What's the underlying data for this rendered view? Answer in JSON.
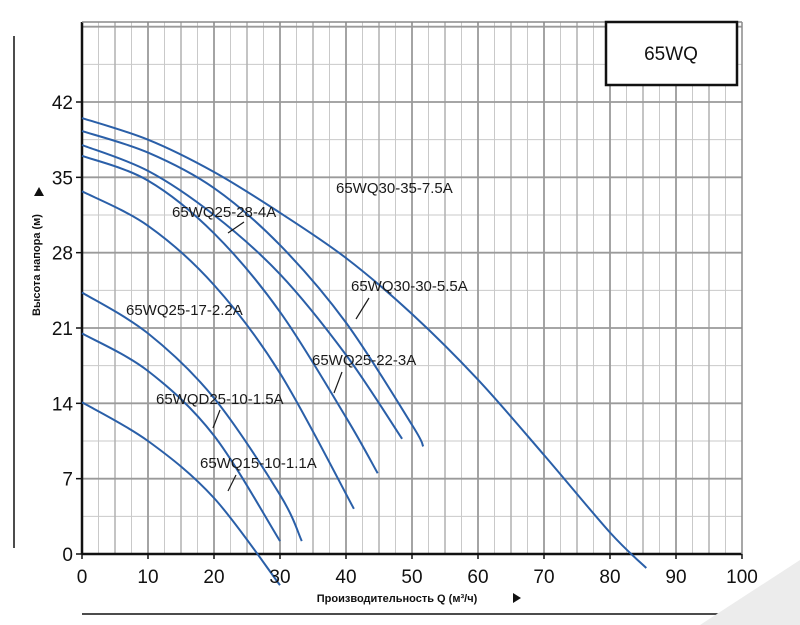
{
  "chart_data": {
    "type": "line",
    "title": "65WQ",
    "xlabel": "Производительность Q (м³/ч)",
    "ylabel": "Высота напора (м)",
    "xlim": [
      0,
      100
    ],
    "ylim": [
      0,
      49
    ],
    "x_ticks": [
      "0",
      "10",
      "20",
      "30",
      "40",
      "50",
      "60",
      "70",
      "80",
      "90",
      "100"
    ],
    "y_ticks": [
      "0",
      "7",
      "14",
      "21",
      "28",
      "35",
      "42"
    ],
    "grid": true,
    "line_color": "#2a5fa8",
    "series": [
      {
        "name": "65WQ30-35-7.5A",
        "x": [
          0,
          10,
          20,
          30,
          40,
          50,
          60,
          70,
          80,
          85.5
        ],
        "y": [
          40.5,
          38.5,
          35.5,
          31.7,
          27.5,
          22.3,
          16.2,
          9.2,
          2.0,
          -1.3
        ]
      },
      {
        "name": "65WQ25-28-4A",
        "x": [
          0,
          10,
          20,
          30,
          40,
          50,
          51.7
        ],
        "y": [
          39.3,
          37.3,
          34.0,
          28.7,
          21.5,
          12.0,
          10.0
        ]
      },
      {
        "name": "65WQ30-30-5.5A",
        "x": [
          0,
          10,
          20,
          30,
          40,
          48.5
        ],
        "y": [
          38.0,
          35.6,
          31.5,
          26.0,
          18.5,
          10.7
        ]
      },
      {
        "name": "65WQ25-22-3A",
        "x": [
          0,
          10,
          20,
          30,
          40,
          44.8
        ],
        "y": [
          37.0,
          34.7,
          29.8,
          22.5,
          12.7,
          7.5
        ]
      },
      {
        "name": "65WQ25-17-2.2A",
        "x": [
          0,
          10,
          20,
          30,
          41.2
        ],
        "y": [
          33.7,
          30.5,
          25.0,
          16.8,
          4.2
        ]
      },
      {
        "name": "65WQD25-10-1.5A",
        "x": [
          0,
          10,
          20,
          30,
          33.3
        ],
        "y": [
          24.3,
          20.5,
          14.5,
          5.5,
          1.2
        ]
      },
      {
        "name": "65WQ15-10-1.1A",
        "x": [
          0,
          10,
          20,
          30
        ],
        "y": [
          20.5,
          17.0,
          11.0,
          1.2
        ]
      },
      {
        "name": "",
        "x": [
          0,
          10,
          20,
          30
        ],
        "y": [
          14.1,
          10.5,
          5.2,
          -2.9
        ]
      }
    ]
  }
}
